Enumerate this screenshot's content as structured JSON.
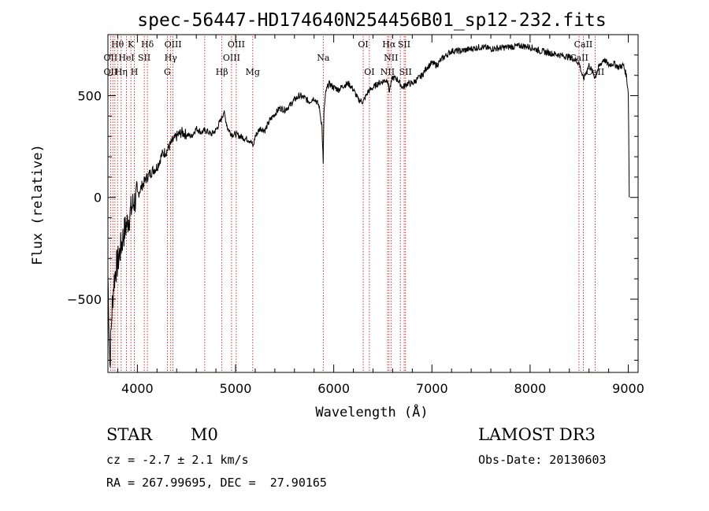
{
  "chart_data": {
    "type": "line",
    "title": "spec-56447-HD174640N254456B01_sp12-232.fits",
    "xlabel": "Wavelength (Å)",
    "ylabel": "Flux (relative)",
    "xlim": [
      3700,
      9100
    ],
    "ylim": [
      -860,
      800
    ],
    "x_ticks": [
      4000,
      5000,
      6000,
      7000,
      8000,
      9000
    ],
    "y_ticks": [
      -500,
      0,
      500
    ],
    "grid": false,
    "series": [
      {
        "x": [
          3700,
          3720,
          3740,
          3760,
          3780,
          3800,
          3830,
          3860,
          3900,
          3950,
          4000,
          4050,
          4100,
          4150,
          4200,
          4250,
          4300,
          4350,
          4400,
          4450,
          4500,
          4550,
          4600,
          4650,
          4700,
          4750,
          4800,
          4850,
          4880,
          4920,
          4960,
          5000,
          5050,
          5100,
          5150,
          5180,
          5200,
          5250,
          5300,
          5350,
          5400,
          5450,
          5500,
          5550,
          5600,
          5650,
          5700,
          5750,
          5800,
          5850,
          5880,
          5893,
          5900,
          5920,
          5950,
          6000,
          6050,
          6100,
          6150,
          6200,
          6250,
          6300,
          6350,
          6400,
          6450,
          6500,
          6550,
          6563,
          6600,
          6650,
          6700,
          6750,
          6800,
          6850,
          6900,
          6950,
          7000,
          7050,
          7100,
          7150,
          7200,
          7300,
          7400,
          7500,
          7600,
          7700,
          7800,
          7900,
          8000,
          8100,
          8200,
          8300,
          8400,
          8450,
          8500,
          8542,
          8600,
          8662,
          8700,
          8750,
          8800,
          8850,
          8900,
          8950,
          8980,
          9000,
          9010
        ],
        "y": [
          -380,
          -820,
          -560,
          -420,
          -350,
          -320,
          -250,
          -180,
          -120,
          -40,
          10,
          60,
          100,
          130,
          150,
          210,
          230,
          270,
          300,
          320,
          310,
          300,
          340,
          320,
          330,
          310,
          330,
          380,
          420,
          340,
          310,
          310,
          300,
          290,
          280,
          250,
          300,
          340,
          330,
          380,
          410,
          440,
          430,
          450,
          480,
          500,
          490,
          470,
          490,
          450,
          350,
          160,
          420,
          520,
          560,
          540,
          530,
          550,
          560,
          530,
          480,
          470,
          520,
          540,
          560,
          570,
          580,
          520,
          590,
          580,
          540,
          560,
          560,
          580,
          600,
          640,
          660,
          650,
          680,
          700,
          720,
          720,
          730,
          740,
          730,
          735,
          740,
          745,
          740,
          720,
          710,
          700,
          690,
          680,
          660,
          580,
          650,
          590,
          640,
          680,
          650,
          660,
          640,
          650,
          600,
          520,
          0
        ]
      }
    ],
    "spectral_lines": [
      {
        "label": "Hθ",
        "row": 1,
        "wave": 3798
      },
      {
        "label": "OII",
        "row": 2,
        "wave": 3727
      },
      {
        "label": "OII",
        "row": 3,
        "wave": 3727
      },
      {
        "label": "K",
        "row": 1,
        "wave": 3934
      },
      {
        "label": "HeI",
        "row": 2,
        "wave": 3889
      },
      {
        "label": "Hη",
        "row": 3,
        "wave": 3835
      },
      {
        "label": "Hδ",
        "row": 1,
        "wave": 4102
      },
      {
        "label": "SII",
        "row": 2,
        "wave": 4070
      },
      {
        "label": "H",
        "row": 3,
        "wave": 3969
      },
      {
        "label": "OIII",
        "row": 1,
        "wave": 4363
      },
      {
        "label": "Hγ",
        "row": 2,
        "wave": 4340
      },
      {
        "label": "G",
        "row": 3,
        "wave": 4305
      },
      {
        "label": "OIII",
        "row": 1,
        "wave": 5007
      },
      {
        "label": "OIII",
        "row": 2,
        "wave": 4959
      },
      {
        "label": "Hβ",
        "row": 3,
        "wave": 4861
      },
      {
        "label": "Mg",
        "row": 3,
        "wave": 5175
      },
      {
        "label": "Na",
        "row": 2,
        "wave": 5893
      },
      {
        "label": "OI",
        "row": 1,
        "wave": 6300
      },
      {
        "label": "OI",
        "row": 3,
        "wave": 6363
      },
      {
        "label": "Hα",
        "row": 1,
        "wave": 6563
      },
      {
        "label": "SII",
        "row": 1,
        "wave": 6717
      },
      {
        "label": "NII",
        "row": 2,
        "wave": 6583
      },
      {
        "label": "NII",
        "row": 3,
        "wave": 6548
      },
      {
        "label": "SII",
        "row": 3,
        "wave": 6731
      },
      {
        "label": "CaII",
        "row": 1,
        "wave": 8542
      },
      {
        "label": "CaII",
        "row": 2,
        "wave": 8498
      },
      {
        "label": "CaII",
        "row": 3,
        "wave": 8662
      }
    ],
    "extra_line_waves": [
      3750,
      3771,
      4686,
      6678
    ]
  },
  "info": {
    "class": "STAR",
    "subclass": "M0",
    "survey": "LAMOST DR3",
    "cz": "cz = -2.7 ± 2.1 km/s",
    "obs_date": "Obs-Date: 20130603",
    "coords": "RA = 267.99695, DEC =  27.90165"
  },
  "colors": {
    "spectrum": "#000000",
    "line_markers": "#cc0000"
  }
}
